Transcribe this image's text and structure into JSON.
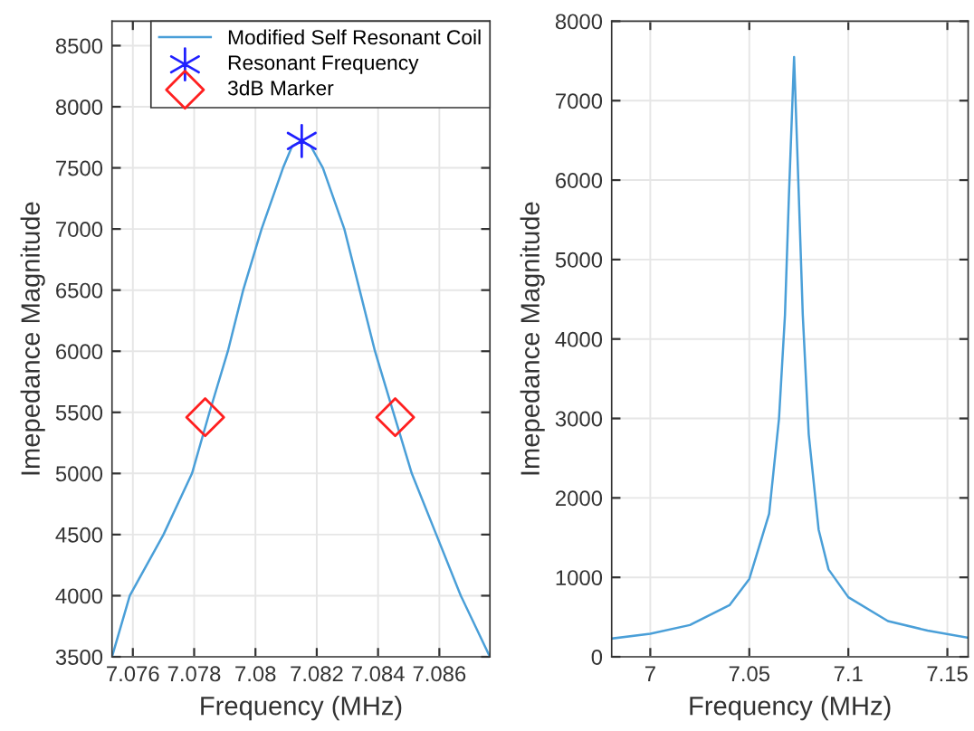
{
  "chart_data": [
    {
      "type": "line",
      "xlabel": "Frequency (MHz)",
      "ylabel": "Imepedance Magnitude",
      "xlim": [
        7.07532,
        7.08765
      ],
      "ylim": [
        3500,
        8700
      ],
      "xticks": [
        {
          "value": 7.076,
          "label": "7.076"
        },
        {
          "value": 7.078,
          "label": "7.078"
        },
        {
          "value": 7.08,
          "label": "7.08"
        },
        {
          "value": 7.082,
          "label": "7.082"
        },
        {
          "value": 7.084,
          "label": "7.084"
        },
        {
          "value": 7.086,
          "label": "7.086"
        }
      ],
      "yticks": [
        3500,
        4000,
        4500,
        5000,
        5500,
        6000,
        6500,
        7000,
        7500,
        8000,
        8500
      ],
      "grid": true,
      "legend": "top right",
      "series": [
        {
          "name": "Modified Self Resonant Coil",
          "color": "#4a9fd8",
          "marker": "none",
          "x": [
            7.07532,
            7.0759,
            7.077,
            7.07793,
            7.0785,
            7.0791,
            7.0796,
            7.0802,
            7.0809,
            7.0812,
            7.08151,
            7.0818,
            7.0822,
            7.0829,
            7.0834,
            7.0839,
            7.0845,
            7.0851,
            7.0859,
            7.0867,
            7.08765
          ],
          "values": [
            3500,
            4000,
            4500,
            5000,
            5500,
            6000,
            6500,
            7000,
            7500,
            7680,
            7720,
            7680,
            7500,
            7000,
            6500,
            6000,
            5500,
            5000,
            4500,
            4000,
            3500
          ]
        },
        {
          "name": "Resonant Frequency",
          "type": "scatter",
          "color": "#2020ff",
          "marker": "cross",
          "x": [
            7.08151
          ],
          "values": [
            7720
          ]
        },
        {
          "name": "3dB Marker",
          "type": "scatter",
          "color": "#ff2020",
          "marker": "diamond",
          "x": [
            7.07836,
            7.08456
          ],
          "values": [
            5460,
            5460
          ]
        }
      ]
    },
    {
      "type": "line",
      "xlabel": "Frequency (MHz)",
      "ylabel": "Imepedance Magnitude",
      "xlim": [
        6.9805,
        7.1605
      ],
      "ylim": [
        0,
        8000
      ],
      "xticks": [
        7,
        7.05,
        7.1,
        7.15
      ],
      "yticks": [
        0,
        1000,
        2000,
        3000,
        4000,
        5000,
        6000,
        7000,
        8000
      ],
      "grid": true,
      "series": [
        {
          "color": "#4a9fd8",
          "marker": "none",
          "x": [
            6.9805,
            7.0,
            7.02,
            7.04,
            7.05,
            7.06,
            7.065,
            7.068,
            7.07,
            7.0726,
            7.075,
            7.077,
            7.08,
            7.085,
            7.09,
            7.1,
            7.12,
            7.14,
            7.1605
          ],
          "values": [
            230,
            290,
            400,
            650,
            980,
            1800,
            3000,
            4300,
            5800,
            7550,
            5800,
            4300,
            2800,
            1600,
            1100,
            750,
            450,
            330,
            240
          ]
        }
      ]
    }
  ]
}
